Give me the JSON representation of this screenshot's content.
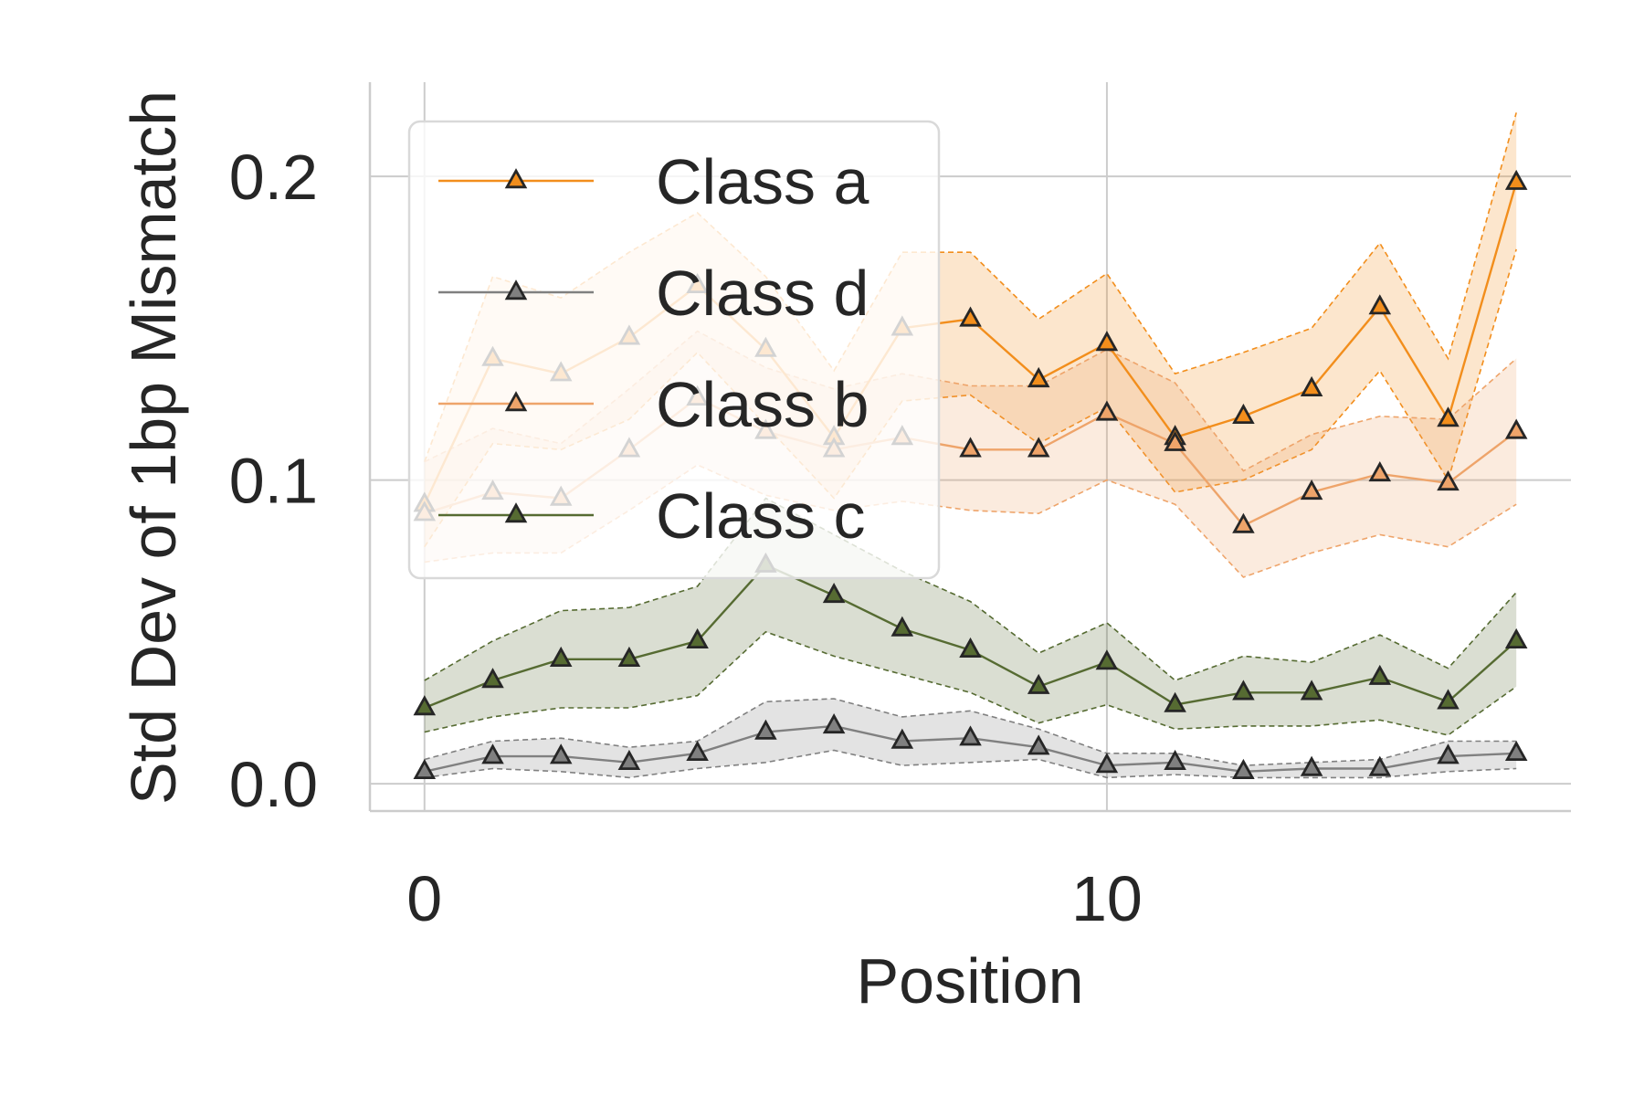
{
  "chart_data": {
    "type": "line",
    "title": "",
    "xlabel": "Position",
    "ylabel": "Std Dev of 1bp Mismatch",
    "xlim": [
      -0.8,
      16.8
    ],
    "ylim": [
      -0.009,
      0.231
    ],
    "xticks": [
      0,
      10
    ],
    "xtick_labels": [
      "0",
      "10"
    ],
    "yticks": [
      0.0,
      0.1,
      0.2
    ],
    "ytick_labels": [
      "0.0",
      "0.1",
      "0.2"
    ],
    "grid": true,
    "legend_position": "upper-left",
    "x": [
      0,
      1,
      2,
      3,
      4,
      5,
      6,
      7,
      8,
      9,
      10,
      11,
      12,
      13,
      14,
      15,
      16
    ],
    "series": [
      {
        "name": "Class a",
        "color": "#f28e1c",
        "values": [
          0.092,
          0.14,
          0.135,
          0.147,
          0.164,
          0.143,
          0.114,
          0.15,
          0.153,
          0.133,
          0.145,
          0.114,
          0.121,
          0.13,
          0.157,
          0.12,
          0.198
        ],
        "lower": [
          0.078,
          0.112,
          0.11,
          0.12,
          0.142,
          0.118,
          0.094,
          0.126,
          0.128,
          0.112,
          0.124,
          0.096,
          0.1,
          0.11,
          0.136,
          0.1,
          0.176
        ],
        "upper": [
          0.106,
          0.167,
          0.16,
          0.175,
          0.188,
          0.167,
          0.136,
          0.175,
          0.175,
          0.153,
          0.168,
          0.135,
          0.142,
          0.15,
          0.178,
          0.14,
          0.221
        ]
      },
      {
        "name": "Class d",
        "color": "#808080",
        "values": [
          0.004,
          0.009,
          0.009,
          0.007,
          0.01,
          0.017,
          0.019,
          0.014,
          0.015,
          0.012,
          0.006,
          0.007,
          0.004,
          0.005,
          0.005,
          0.009,
          0.01
        ],
        "lower": [
          0.002,
          0.005,
          0.004,
          0.002,
          0.005,
          0.007,
          0.011,
          0.006,
          0.007,
          0.008,
          0.002,
          0.003,
          0.002,
          0.002,
          0.002,
          0.004,
          0.005
        ],
        "upper": [
          0.008,
          0.014,
          0.015,
          0.012,
          0.014,
          0.027,
          0.028,
          0.022,
          0.024,
          0.018,
          0.01,
          0.01,
          0.006,
          0.007,
          0.008,
          0.014,
          0.014
        ]
      },
      {
        "name": "Class b",
        "color": "#eea46a",
        "values": [
          0.089,
          0.096,
          0.094,
          0.11,
          0.127,
          0.116,
          0.11,
          0.114,
          0.11,
          0.11,
          0.122,
          0.112,
          0.085,
          0.096,
          0.102,
          0.099,
          0.116
        ],
        "lower": [
          0.073,
          0.076,
          0.076,
          0.09,
          0.105,
          0.095,
          0.09,
          0.093,
          0.09,
          0.089,
          0.1,
          0.092,
          0.068,
          0.076,
          0.082,
          0.078,
          0.092
        ],
        "upper": [
          0.106,
          0.117,
          0.112,
          0.13,
          0.149,
          0.137,
          0.13,
          0.135,
          0.131,
          0.131,
          0.143,
          0.132,
          0.103,
          0.115,
          0.121,
          0.12,
          0.14
        ]
      },
      {
        "name": "Class c",
        "color": "#566b32",
        "values": [
          0.025,
          0.034,
          0.041,
          0.041,
          0.047,
          0.072,
          0.062,
          0.051,
          0.044,
          0.032,
          0.04,
          0.026,
          0.03,
          0.03,
          0.035,
          0.027,
          0.047
        ],
        "lower": [
          0.017,
          0.022,
          0.025,
          0.025,
          0.029,
          0.05,
          0.042,
          0.036,
          0.03,
          0.02,
          0.026,
          0.018,
          0.019,
          0.019,
          0.021,
          0.016,
          0.032
        ],
        "upper": [
          0.034,
          0.047,
          0.057,
          0.058,
          0.065,
          0.094,
          0.082,
          0.07,
          0.06,
          0.043,
          0.053,
          0.034,
          0.042,
          0.04,
          0.049,
          0.038,
          0.063
        ]
      }
    ]
  }
}
